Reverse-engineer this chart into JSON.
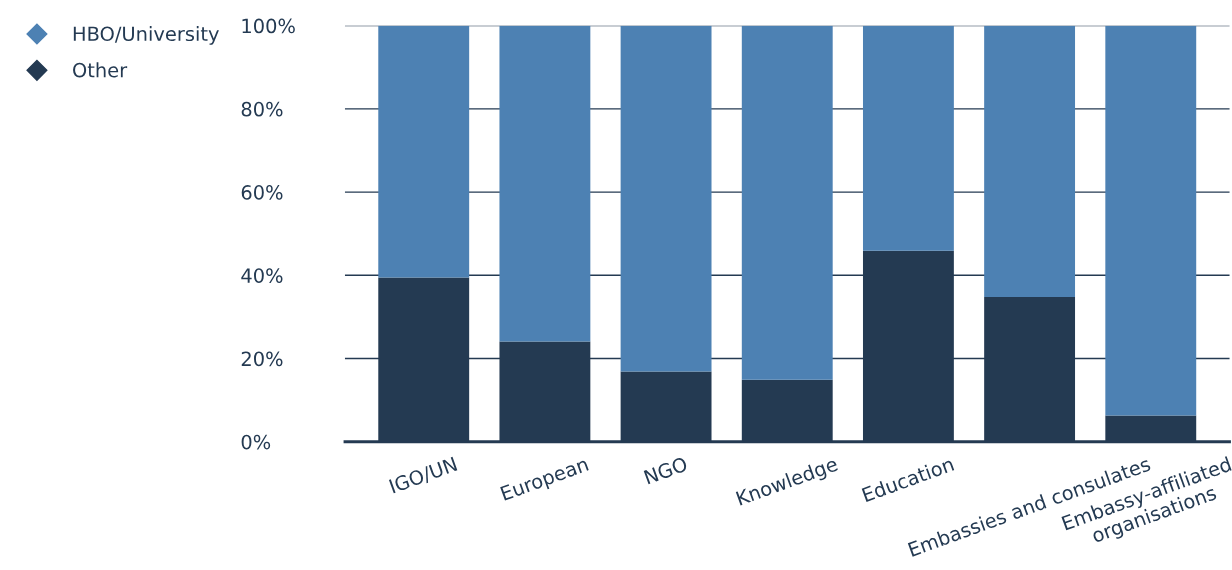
{
  "chart_data": {
    "type": "bar",
    "stacked": true,
    "categories": [
      "IGO/UN",
      "European",
      "NGO",
      "Knowledge",
      "Education",
      "Embassies and consulates",
      "Embassy-affiliated\norganisations"
    ],
    "series": [
      {
        "name": "Other",
        "color": "#243a52",
        "values": [
          39.5,
          24.1,
          16.9,
          14.9,
          45.9,
          34.8,
          6.3
        ]
      },
      {
        "name": "HBO/University",
        "color": "#4d81b3",
        "values": [
          60.5,
          75.9,
          83.1,
          85.1,
          54.1,
          65.2,
          93.7
        ]
      }
    ],
    "ylim": [
      0,
      100
    ],
    "yticks": [
      {
        "value": 0,
        "label": "0%"
      },
      {
        "value": 20,
        "label": "20%"
      },
      {
        "value": 40,
        "label": "40%"
      },
      {
        "value": 60,
        "label": "60%"
      },
      {
        "value": 80,
        "label": "80%"
      },
      {
        "value": 100,
        "label": "100%"
      }
    ],
    "grid": "y",
    "legend": "top left",
    "marker": "diamond"
  }
}
